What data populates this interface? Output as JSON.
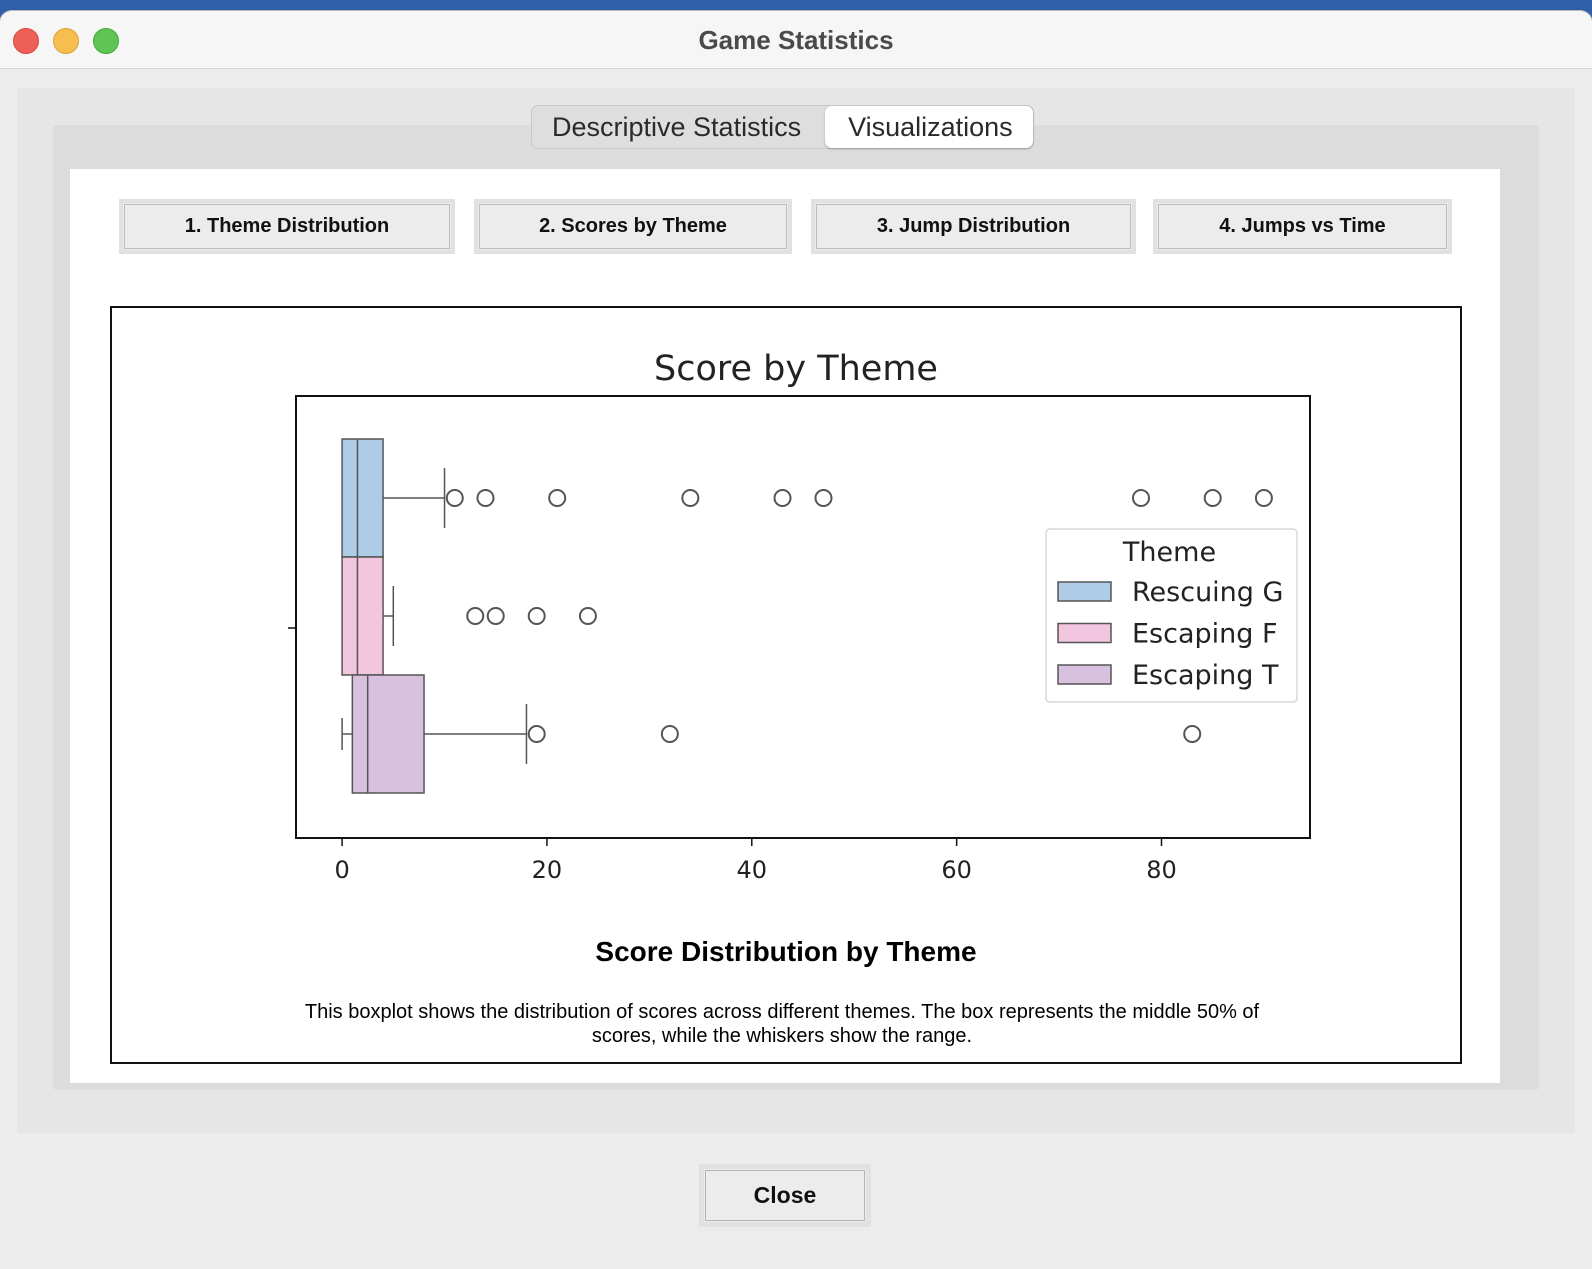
{
  "window": {
    "title": "Game Statistics"
  },
  "tabs": [
    {
      "label": "Descriptive Statistics",
      "active": false
    },
    {
      "label": "Visualizations",
      "active": true
    }
  ],
  "viz_buttons": [
    {
      "label": "1. Theme Distribution"
    },
    {
      "label": "2. Scores by Theme"
    },
    {
      "label": "3. Jump Distribution"
    },
    {
      "label": "4. Jumps vs Time"
    }
  ],
  "caption": {
    "title": "Score Distribution by Theme",
    "description": "This boxplot shows the distribution of scores across different themes. The box represents the middle 50% of scores, while the whiskers show the range."
  },
  "close_button": {
    "label": "Close"
  },
  "chart_data": {
    "type": "boxplot",
    "title": "Score by Theme",
    "xlim": [
      -4.5,
      94.5
    ],
    "xticks": [
      0,
      20,
      40,
      60,
      80
    ],
    "legend": {
      "title": "Theme",
      "position": "center-right"
    },
    "series": [
      {
        "name": "Rescuing G",
        "color": "#aecbe8",
        "whisker_low": 0,
        "q1": 0,
        "median": 1.5,
        "q3": 4,
        "whisker_high": 10,
        "outliers": [
          11,
          14,
          21,
          34,
          43,
          47,
          78,
          85,
          90
        ]
      },
      {
        "name": "Escaping F",
        "color": "#f1c6de",
        "whisker_low": 0,
        "q1": 0,
        "median": 1.5,
        "q3": 4,
        "whisker_high": 5,
        "outliers": [
          13,
          15,
          19,
          24
        ]
      },
      {
        "name": "Escaping T",
        "color": "#d8c1df",
        "whisker_low": 0,
        "q1": 1,
        "median": 2.5,
        "q3": 8,
        "whisker_high": 18,
        "outliers": [
          19,
          32,
          83
        ]
      }
    ]
  }
}
